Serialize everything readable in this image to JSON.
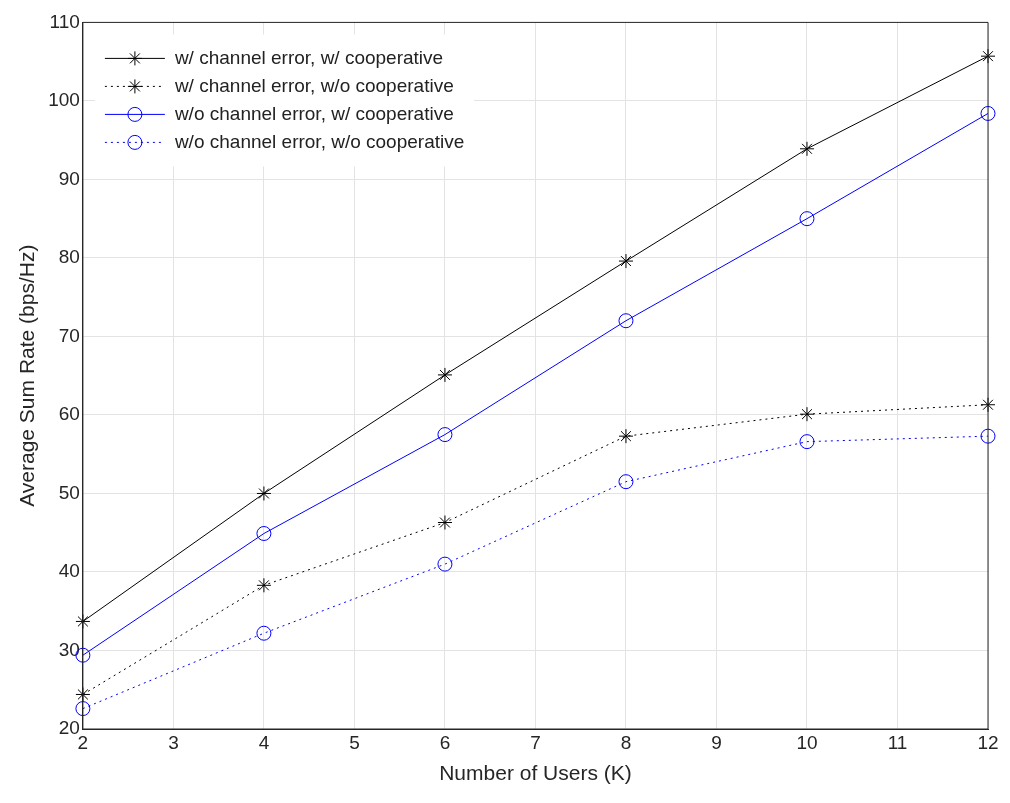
{
  "chart_data": {
    "type": "line",
    "xlabel": "Number of Users (K)",
    "ylabel": "Average Sum Rate (bps/Hz)",
    "x": [
      2,
      4,
      6,
      8,
      10,
      12
    ],
    "xlim": [
      2,
      12
    ],
    "xticks": [
      2,
      3,
      4,
      5,
      6,
      7,
      8,
      9,
      10,
      11,
      12
    ],
    "ylim": [
      20,
      110
    ],
    "yticks": [
      20,
      30,
      40,
      50,
      60,
      70,
      80,
      90,
      100,
      110
    ],
    "grid": true,
    "legend": "top left",
    "series": [
      {
        "name": "w/ channel error, w/ cooperative",
        "color": "#000000",
        "marker": "cross",
        "line_style": "solid",
        "values": [
          33.7,
          50.0,
          65.1,
          79.6,
          93.9,
          105.7
        ]
      },
      {
        "name": "w/ channel error, w/o cooperative",
        "color": "#000000",
        "marker": "cross",
        "line_style": "dotted",
        "values": [
          24.4,
          38.3,
          46.3,
          57.3,
          60.1,
          61.3
        ]
      },
      {
        "name": "w/o channel error, w/ cooperative",
        "color": "#0000ff",
        "marker": "circle",
        "line_style": "solid",
        "values": [
          29.4,
          44.9,
          57.5,
          72.0,
          85.0,
          98.4
        ]
      },
      {
        "name": "w/o channel error, w/o cooperative",
        "color": "#0000ff",
        "marker": "circle",
        "line_style": "dotted",
        "values": [
          22.6,
          32.2,
          41.0,
          51.5,
          56.6,
          57.3
        ]
      }
    ]
  }
}
